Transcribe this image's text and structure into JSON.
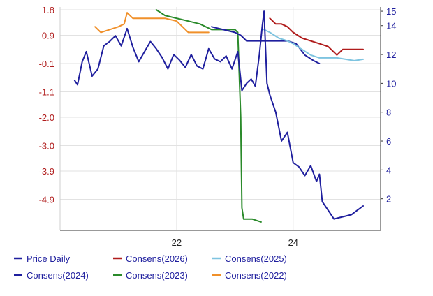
{
  "chart_data": {
    "type": "line",
    "xlim": [
      2020.0,
      2025.5
    ],
    "x_ticks": [
      {
        "value": 2022,
        "label": "22"
      },
      {
        "value": 2024,
        "label": "24"
      }
    ],
    "left_axis": {
      "ticks": [
        "1.8",
        "0.9",
        "-0.1",
        "-1.1",
        "-2.0",
        "-3.0",
        "-3.9",
        "-4.9"
      ],
      "ylim": [
        -5.9,
        1.8
      ]
    },
    "right_axis": {
      "ticks": [
        "15",
        "14",
        "12",
        "10",
        "8",
        "6",
        "4",
        "2"
      ],
      "ylim": [
        0,
        15.1
      ]
    },
    "grid": true,
    "legend_placement": "bottom",
    "series": [
      {
        "name": "Price Daily",
        "axis": "right",
        "color": "#1f1f9e",
        "x": [
          2020.25,
          2020.3,
          2020.38,
          2020.45,
          2020.55,
          2020.65,
          2020.75,
          2020.85,
          2020.95,
          2021.05,
          2021.15,
          2021.25,
          2021.35,
          2021.45,
          2021.55,
          2021.65,
          2021.75,
          2021.85,
          2021.95,
          2022.05,
          2022.15,
          2022.25,
          2022.35,
          2022.45,
          2022.55,
          2022.65,
          2022.75,
          2022.85,
          2022.95,
          2023.05,
          2023.12,
          2023.2,
          2023.28,
          2023.35,
          2023.42,
          2023.47,
          2023.5,
          2023.55,
          2023.6,
          2023.7,
          2023.8,
          2023.9,
          2024.0,
          2024.1,
          2024.2,
          2024.3,
          2024.4,
          2024.45,
          2024.5,
          2024.6,
          2024.7,
          2024.8,
          2024.9,
          2025.0,
          2025.1,
          2025.2
        ],
        "y": [
          10.2,
          9.9,
          11.5,
          12.2,
          10.5,
          11.0,
          12.6,
          12.9,
          13.3,
          12.6,
          13.8,
          12.5,
          11.5,
          12.2,
          12.9,
          12.4,
          11.8,
          11.0,
          12.0,
          11.6,
          11.1,
          12.0,
          11.2,
          11.0,
          12.4,
          11.7,
          11.5,
          11.9,
          11.0,
          12.2,
          9.5,
          10.0,
          10.3,
          9.8,
          12.0,
          14.0,
          15.0,
          10.0,
          9.2,
          8.0,
          6.0,
          6.6,
          4.5,
          4.2,
          3.6,
          4.3,
          3.2,
          3.7,
          1.8,
          1.2,
          0.6,
          0.7,
          0.8,
          0.9,
          1.2,
          1.5
        ]
      },
      {
        "name": "Consens(2026)",
        "axis": "left",
        "color": "#b01c1c",
        "x": [
          2023.6,
          2023.7,
          2023.8,
          2023.9,
          2024.0,
          2024.15,
          2024.3,
          2024.45,
          2024.6,
          2024.75,
          2024.85,
          2024.95,
          2025.1,
          2025.2
        ],
        "y": [
          1.5,
          1.3,
          1.3,
          1.2,
          1.0,
          0.8,
          0.7,
          0.6,
          0.5,
          0.2,
          0.4,
          0.4,
          0.4,
          0.4
        ]
      },
      {
        "name": "Consens(2025)",
        "axis": "left",
        "color": "#7ec4e0",
        "x": [
          2023.5,
          2023.6,
          2023.75,
          2023.9,
          2024.0,
          2024.15,
          2024.3,
          2024.45,
          2024.6,
          2024.75,
          2024.9,
          2025.05,
          2025.2
        ],
        "y": [
          1.1,
          1.0,
          0.8,
          0.7,
          0.6,
          0.4,
          0.2,
          0.1,
          0.1,
          0.1,
          0.05,
          0.0,
          0.05
        ]
      },
      {
        "name": "Consens(2024)",
        "axis": "left",
        "color": "#1f1f9e",
        "x": [
          2022.6,
          2022.8,
          2023.0,
          2023.1,
          2023.2,
          2023.35,
          2023.5,
          2023.7,
          2023.9,
          2024.05,
          2024.2,
          2024.35,
          2024.45
        ],
        "y": [
          1.2,
          1.1,
          1.0,
          0.9,
          0.7,
          0.7,
          0.7,
          0.7,
          0.7,
          0.6,
          0.2,
          0.0,
          -0.1
        ]
      },
      {
        "name": "Consens(2023)",
        "axis": "left",
        "color": "#2a8a2a",
        "x": [
          2021.65,
          2021.8,
          2022.0,
          2022.2,
          2022.4,
          2022.6,
          2022.8,
          2023.0,
          2023.05,
          2023.1,
          2023.12,
          2023.15,
          2023.3,
          2023.45
        ],
        "y": [
          1.8,
          1.6,
          1.5,
          1.4,
          1.3,
          1.1,
          1.1,
          1.1,
          1.0,
          -2.0,
          -5.2,
          -5.6,
          -5.6,
          -5.7
        ]
      },
      {
        "name": "Consens(2022)",
        "axis": "left",
        "color": "#f0902a",
        "x": [
          2020.6,
          2020.7,
          2020.85,
          2021.0,
          2021.1,
          2021.15,
          2021.25,
          2021.4,
          2021.6,
          2021.8,
          2022.0,
          2022.1,
          2022.2,
          2022.4,
          2022.55
        ],
        "y": [
          1.2,
          1.0,
          1.1,
          1.2,
          1.3,
          1.7,
          1.5,
          1.5,
          1.5,
          1.5,
          1.4,
          1.2,
          1.0,
          1.0,
          1.0
        ]
      }
    ],
    "legend": [
      [
        "Price Daily",
        "Consens(2026)",
        "Consens(2025)"
      ],
      [
        "Consens(2024)",
        "Consens(2023)",
        "Consens(2022)"
      ]
    ]
  }
}
